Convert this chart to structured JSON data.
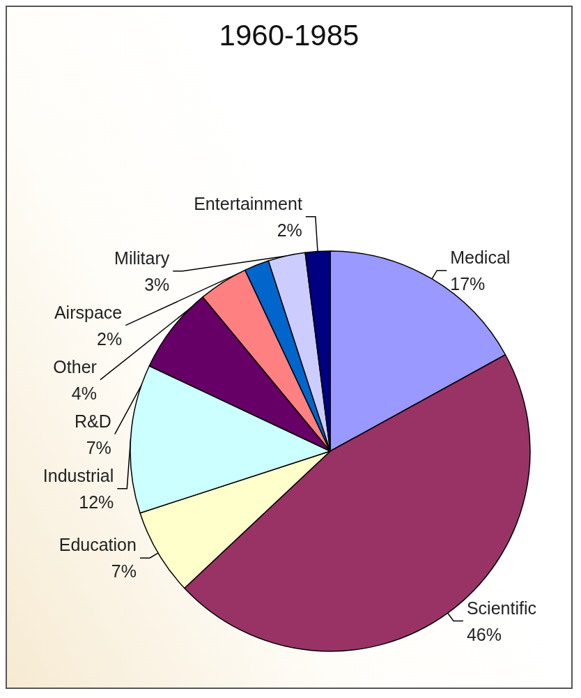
{
  "chart_data": {
    "type": "pie",
    "title": "1960-1985",
    "categories": [
      "Medical",
      "Scientific",
      "Education",
      "Industrial",
      "R&D",
      "Other",
      "Airspace",
      "Military",
      "Entertainment"
    ],
    "values": [
      17,
      46,
      7,
      12,
      7,
      4,
      2,
      3,
      2
    ],
    "value_labels": [
      "17%",
      "46%",
      "7%",
      "12%",
      "7%",
      "4%",
      "2%",
      "3%",
      "2%"
    ],
    "colors": [
      "#9999ff",
      "#993366",
      "#ffffcc",
      "#ccffff",
      "#660066",
      "#ff8080",
      "#0066cc",
      "#ccccff",
      "#000080"
    ],
    "legend": false
  }
}
